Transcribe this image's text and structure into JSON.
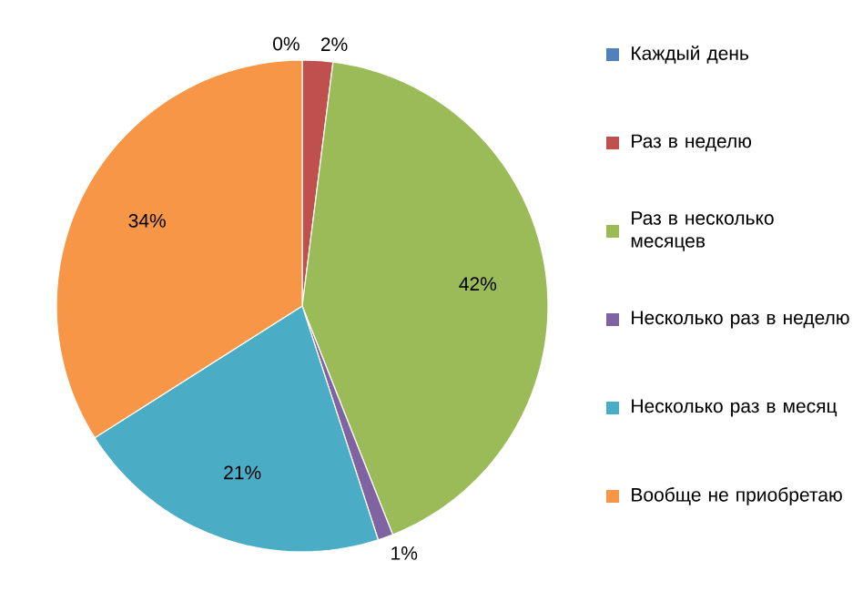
{
  "chart_data": {
    "type": "pie",
    "categories": [
      "Каждый день",
      "Раз в неделю",
      "Раз в несколько месяцев",
      "Несколько раз в неделю",
      "Несколько раз в месяц",
      "Вообще не приобретаю"
    ],
    "values": [
      0,
      2,
      42,
      1,
      21,
      34
    ],
    "colors": [
      "#4f81bd",
      "#c0504d",
      "#9bbb59",
      "#8064a2",
      "#4bacc6",
      "#f79646"
    ],
    "value_labels": [
      "0%",
      "2%",
      "42%",
      "1%",
      "21%",
      "34%"
    ],
    "legend": "right"
  }
}
